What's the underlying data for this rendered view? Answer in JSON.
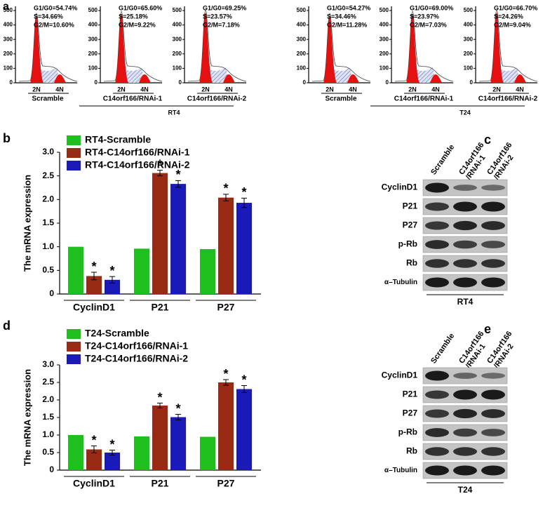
{
  "panel_a": {
    "label": "a",
    "yticks": [
      0,
      100,
      200,
      300,
      400,
      500
    ],
    "x_labels": [
      "2N",
      "4N"
    ],
    "groups": [
      {
        "name": "RT4",
        "samples": [
          {
            "name": "Scramble",
            "stats": [
              "G1/G0=54.74%",
              "S=34.66%",
              "G2/M=10.60%"
            ]
          },
          {
            "name": "C14orf166/RNAi-1",
            "stats": [
              "G1/G0=65.60%",
              "S=25.18%",
              "G2/M=9.22%"
            ]
          },
          {
            "name": "C14orf166/RNAi-2",
            "stats": [
              "G1/G0=69.25%",
              "S=23.57%",
              "G2/M=7.18%"
            ]
          }
        ]
      },
      {
        "name": "T24",
        "samples": [
          {
            "name": "Scramble",
            "stats": [
              "G1/G0=54.27%",
              "S=34.46%",
              "G2/M=11.28%"
            ]
          },
          {
            "name": "C14orf166/RNAi-1",
            "stats": [
              "G1/G0=69.00%",
              "S=23.97%",
              "G2/M=7.03%"
            ]
          },
          {
            "name": "C14orf166/RNAi-2",
            "stats": [
              "G1/G0=66.70%",
              "S=24.26%",
              "G2/M=9.04%"
            ]
          }
        ]
      }
    ]
  },
  "chart_data": [
    {
      "type": "bar",
      "label": "b",
      "y_label": "The mRNA expression",
      "annotation": "*",
      "categories": [
        "CyclinD1",
        "P21",
        "P27"
      ],
      "series": [
        {
          "name": "RT4-Scramble",
          "color": "#1fbf1f",
          "values": [
            1.0,
            0.96,
            0.95
          ]
        },
        {
          "name": "RT4-C14orf166/RNAi-1",
          "color": "#992a14",
          "values": [
            0.38,
            2.56,
            2.04
          ],
          "errors": [
            0.08,
            0.06,
            0.07
          ]
        },
        {
          "name": "RT4-C14orf166/RNAi-2",
          "color": "#1a1ab8",
          "values": [
            0.3,
            2.33,
            1.93
          ],
          "errors": [
            0.07,
            0.07,
            0.1
          ]
        }
      ],
      "ylim": [
        0,
        3
      ],
      "yticks": [
        0,
        0.5,
        {
          "value": 1,
          "label": "1.0"
        },
        1.5,
        {
          "value": 2,
          "label": "2.0"
        },
        2.5,
        {
          "value": 3,
          "label": "3.0"
        }
      ]
    },
    {
      "type": "bar",
      "label": "d",
      "y_label": "The mRNA expression",
      "annotation": "*",
      "categories": [
        "CyclinD1",
        "P21",
        "P27"
      ],
      "series": [
        {
          "name": "T24-Scramble",
          "color": "#1fbf1f",
          "values": [
            1.0,
            0.96,
            0.95
          ]
        },
        {
          "name": "T24-C14orf166/RNAi-1",
          "color": "#992a14",
          "values": [
            0.59,
            1.84,
            2.5
          ],
          "errors": [
            0.1,
            0.07,
            0.08
          ]
        },
        {
          "name": "T24-C14orf166/RNAi-2",
          "color": "#1a1ab8",
          "values": [
            0.5,
            1.51,
            2.31
          ],
          "errors": [
            0.07,
            0.08,
            0.1
          ]
        }
      ],
      "ylim": [
        0,
        3
      ],
      "yticks": [
        0,
        0.5,
        {
          "value": 1,
          "label": "1.0"
        },
        1.5,
        {
          "value": 2,
          "label": "2.0"
        },
        2.5,
        {
          "value": 3,
          "label": "3.0"
        }
      ]
    }
  ],
  "panel_c": {
    "label": "c",
    "columns": [
      [
        "Scramble"
      ],
      [
        "C14orf166",
        "/RNAi-1"
      ],
      [
        "C14orf166",
        "/RNAi-2"
      ]
    ],
    "rows": [
      "CyclinD1",
      "P21",
      "P27",
      "p-Rb",
      "Rb",
      "α–Tubulin"
    ],
    "cell_line": "RT4"
  },
  "panel_e": {
    "label": "e",
    "columns": [
      [
        "Scramble"
      ],
      [
        "C14orf166",
        "/RNAi-1"
      ],
      [
        "C14orf166",
        "/RNAi-2"
      ]
    ],
    "rows": [
      "CyclinD1",
      "P21",
      "P27",
      "p-Rb",
      "Rb",
      "α–Tubulin"
    ],
    "cell_line": "T24"
  }
}
